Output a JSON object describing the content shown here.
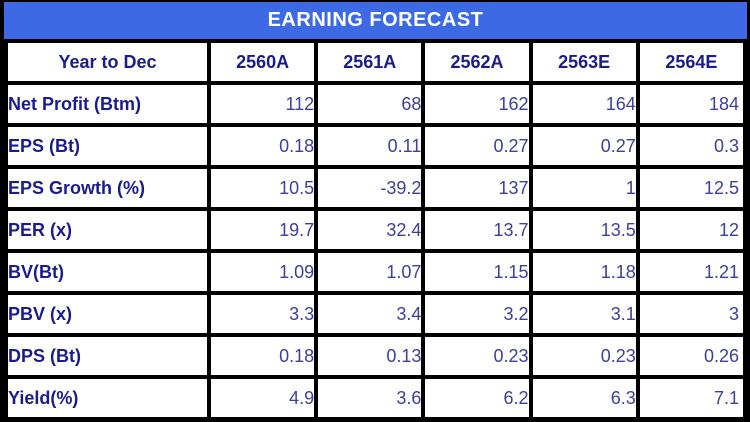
{
  "title": "EARNING FORECAST",
  "colors": {
    "title_bar_bg": "#3D6AE4",
    "title_text": "#FFFFFF",
    "label_text": "#1B1B8E",
    "value_text": "#3E3E9D",
    "grid_border": "#000000",
    "cell_bg": "#FFFFFF"
  },
  "table": {
    "columns": [
      "Year to Dec",
      "2560A",
      "2561A",
      "2562A",
      "2563E",
      "2564E"
    ],
    "rows": [
      {
        "label": "Net Profit (Btm)",
        "values": [
          "112",
          "68",
          "162",
          "164",
          "184"
        ]
      },
      {
        "label": "EPS (Bt)",
        "values": [
          "0.18",
          "0.11",
          "0.27",
          "0.27",
          "0.3"
        ]
      },
      {
        "label": "EPS Growth (%)",
        "values": [
          "10.5",
          "-39.2",
          "137",
          "1",
          "12.5"
        ]
      },
      {
        "label": "PER (x)",
        "values": [
          "19.7",
          "32.4",
          "13.7",
          "13.5",
          "12"
        ]
      },
      {
        "label": "BV(Bt)",
        "values": [
          "1.09",
          "1.07",
          "1.15",
          "1.18",
          "1.21"
        ]
      },
      {
        "label": "PBV (x)",
        "values": [
          "3.3",
          "3.4",
          "3.2",
          "3.1",
          "3"
        ]
      },
      {
        "label": "DPS (Bt)",
        "values": [
          "0.18",
          "0.13",
          "0.23",
          "0.23",
          "0.26"
        ]
      },
      {
        "label": "Yield(%)",
        "values": [
          "4.9",
          "3.6",
          "6.2",
          "6.3",
          "7.1"
        ]
      }
    ]
  },
  "chart_data": {
    "type": "table",
    "title": "EARNING FORECAST",
    "categories": [
      "2560A",
      "2561A",
      "2562A",
      "2563E",
      "2564E"
    ],
    "row_header": "Year to Dec",
    "series": [
      {
        "name": "Net Profit (Btm)",
        "values": [
          112,
          68,
          162,
          164,
          184
        ]
      },
      {
        "name": "EPS (Bt)",
        "values": [
          0.18,
          0.11,
          0.27,
          0.27,
          0.3
        ]
      },
      {
        "name": "EPS Growth (%)",
        "values": [
          10.5,
          -39.2,
          137,
          1,
          12.5
        ]
      },
      {
        "name": "PER (x)",
        "values": [
          19.7,
          32.4,
          13.7,
          13.5,
          12
        ]
      },
      {
        "name": "BV(Bt)",
        "values": [
          1.09,
          1.07,
          1.15,
          1.18,
          1.21
        ]
      },
      {
        "name": "PBV (x)",
        "values": [
          3.3,
          3.4,
          3.2,
          3.1,
          3
        ]
      },
      {
        "name": "DPS (Bt)",
        "values": [
          0.18,
          0.13,
          0.23,
          0.23,
          0.26
        ]
      },
      {
        "name": "Yield(%)",
        "values": [
          4.9,
          3.6,
          6.2,
          6.3,
          7.1
        ]
      }
    ],
    "layout": {
      "grid": true,
      "value_alignment": "right",
      "header_position": "top"
    }
  }
}
